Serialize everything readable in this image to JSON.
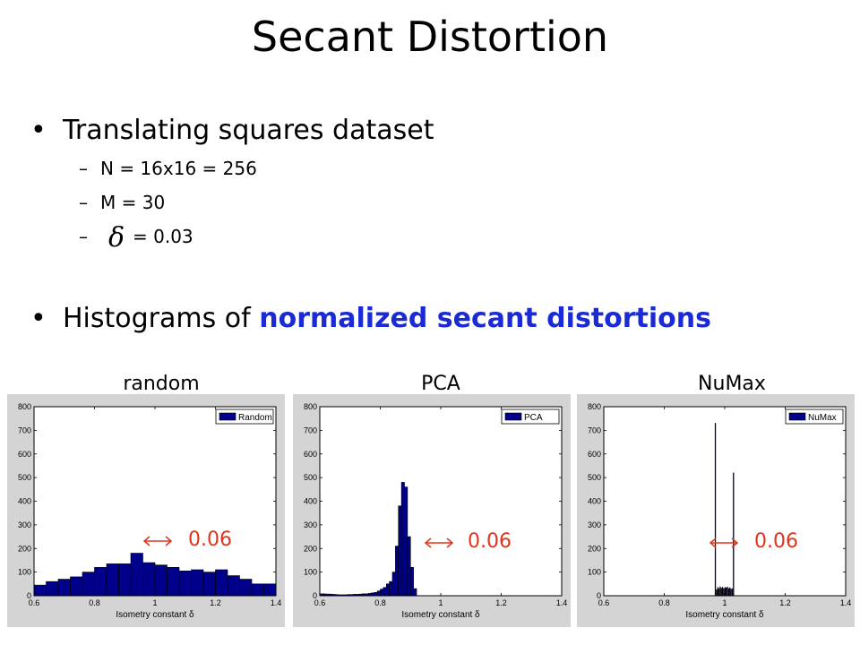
{
  "slide": {
    "title": "Secant Distortion",
    "bullet1": "Translating squares dataset",
    "sub1": "N = 16x16 = 256",
    "sub2": "M = 30",
    "sub3_symbol": "δ",
    "sub3_value": "= 0.03",
    "bullet2_plain": "Histograms of ",
    "bullet2_highlight": "normalized secant distortions",
    "highlight_color": "#1a2bd6",
    "panel_labels": [
      "random",
      "PCA",
      "NuMax"
    ],
    "annotation": "0.06",
    "annotation_color": "#e0341b"
  },
  "chart_data": [
    {
      "type": "bar",
      "legend": "Random",
      "xlabel": "Isometry constant δ",
      "xlim": [
        0.6,
        1.4
      ],
      "ylim": [
        0,
        800
      ],
      "xticks": [
        0.6,
        0.8,
        1,
        1.2,
        1.4
      ],
      "yticks": [
        0,
        100,
        200,
        300,
        400,
        500,
        600,
        700,
        800
      ],
      "bin_width": 0.04,
      "x": [
        0.62,
        0.66,
        0.7,
        0.74,
        0.78,
        0.82,
        0.86,
        0.9,
        0.94,
        0.98,
        1.02,
        1.06,
        1.1,
        1.14,
        1.18,
        1.22,
        1.26,
        1.3,
        1.34,
        1.38
      ],
      "values": [
        45,
        60,
        70,
        80,
        100,
        120,
        135,
        135,
        180,
        140,
        130,
        120,
        105,
        110,
        100,
        110,
        85,
        70,
        50,
        50
      ]
    },
    {
      "type": "bar",
      "legend": "PCA",
      "xlabel": "Isometry constant δ",
      "xlim": [
        0.6,
        1.4
      ],
      "ylim": [
        0,
        800
      ],
      "xticks": [
        0.6,
        0.8,
        1,
        1.2,
        1.4
      ],
      "yticks": [
        0,
        100,
        200,
        300,
        400,
        500,
        600,
        700,
        800
      ],
      "bin_width": 0.01,
      "x": [
        0.605,
        0.615,
        0.625,
        0.635,
        0.645,
        0.655,
        0.665,
        0.675,
        0.685,
        0.695,
        0.705,
        0.715,
        0.725,
        0.735,
        0.745,
        0.755,
        0.765,
        0.775,
        0.785,
        0.795,
        0.805,
        0.815,
        0.825,
        0.835,
        0.845,
        0.855,
        0.865,
        0.875,
        0.885,
        0.895,
        0.905,
        0.915
      ],
      "values": [
        8,
        8,
        7,
        7,
        6,
        5,
        4,
        4,
        4,
        5,
        5,
        6,
        6,
        7,
        8,
        8,
        10,
        12,
        14,
        20,
        28,
        35,
        50,
        60,
        100,
        210,
        380,
        480,
        460,
        250,
        120,
        30
      ]
    },
    {
      "type": "bar",
      "legend": "NuMax",
      "xlabel": "Isometry constant δ",
      "xlim": [
        0.6,
        1.4
      ],
      "ylim": [
        0,
        800
      ],
      "xticks": [
        0.6,
        0.8,
        1,
        1.2,
        1.4
      ],
      "yticks": [
        0,
        100,
        200,
        300,
        400,
        500,
        600,
        700,
        800
      ],
      "bin_width": 0.002,
      "x": [
        0.969,
        0.973,
        0.977,
        0.981,
        0.985,
        0.989,
        0.993,
        0.997,
        1.001,
        1.005,
        1.009,
        1.013,
        1.017,
        1.021,
        1.025,
        1.029
      ],
      "values": [
        730,
        25,
        35,
        30,
        38,
        32,
        36,
        30,
        35,
        33,
        37,
        30,
        34,
        28,
        30,
        520
      ]
    }
  ]
}
